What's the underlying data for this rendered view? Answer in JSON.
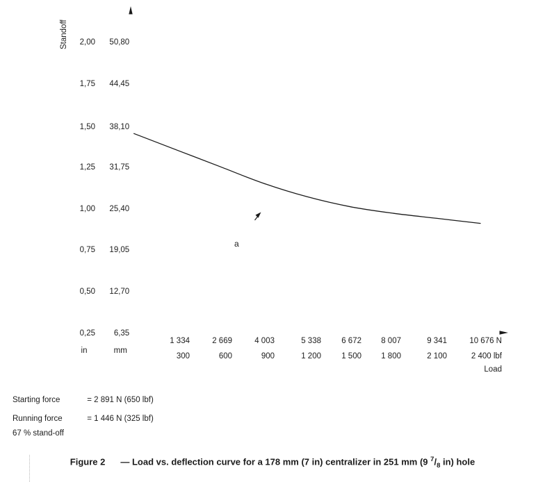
{
  "figure": {
    "y_axis": {
      "title": "Standoff",
      "unit_in": "in",
      "unit_mm": "mm",
      "ticks": [
        {
          "in": "2,00",
          "mm": "50,80"
        },
        {
          "in": "1,75",
          "mm": "44,45"
        },
        {
          "in": "1,50",
          "mm": "38,10"
        },
        {
          "in": "1,25",
          "mm": "31,75"
        },
        {
          "in": "1,00",
          "mm": "25,40"
        },
        {
          "in": "0,75",
          "mm": "19,05"
        },
        {
          "in": "0,50",
          "mm": "12,70"
        },
        {
          "in": "0,25",
          "mm": "6,35"
        }
      ]
    },
    "x_axis": {
      "title": "Load",
      "ticks": [
        {
          "newtons": "1 334",
          "pounds": "300"
        },
        {
          "newtons": "2 669",
          "pounds": "600"
        },
        {
          "newtons": "4 003",
          "pounds": "900"
        },
        {
          "newtons": "5 338",
          "pounds": "1 200"
        },
        {
          "newtons": "6 672",
          "pounds": "1 500"
        },
        {
          "newtons": "8 007",
          "pounds": "1 800"
        },
        {
          "newtons": "9 341",
          "pounds": "2 100"
        },
        {
          "newtons": "10 676 N",
          "pounds": "2 400 lbf"
        }
      ]
    },
    "annotation_a": "a",
    "notes": [
      {
        "label": "Starting force",
        "value": "= 2 891 N (650 lbf)"
      },
      {
        "label": "Running force",
        "value": "= 1 446 N (325 lbf)"
      },
      {
        "label": "67 % stand-off",
        "value": ""
      }
    ],
    "caption": {
      "label": "Figure 2",
      "body_before": "— Load vs. deflection curve for a 178 mm (7 in) centralizer in 251 mm (9 ",
      "frac_numerator": "7",
      "frac_slash": "/",
      "frac_denominator": "8",
      "body_after": " in) hole"
    },
    "line_color": "#1a1a1a"
  },
  "chart_data": {
    "type": "line",
    "title": "Figure 2 — Load vs. deflection curve for a 178 mm (7 in) centralizer in 251 mm (9 7/8 in) hole",
    "xlabel": "Load",
    "ylabel": "Standoff",
    "x_ticks_N": [
      1334,
      2669,
      4003,
      5338,
      6672,
      8007,
      9341,
      10676
    ],
    "x_ticks_lbf": [
      300,
      600,
      900,
      1200,
      1500,
      1800,
      2100,
      2400
    ],
    "y_ticks_in": [
      0.25,
      0.5,
      0.75,
      1.0,
      1.25,
      1.5,
      1.75,
      2.0
    ],
    "y_ticks_mm": [
      6.35,
      12.7,
      19.05,
      25.4,
      31.75,
      38.1,
      44.45,
      50.8
    ],
    "xlim_N": [
      0,
      10676
    ],
    "ylim_in": [
      0.25,
      2.0
    ],
    "grid": false,
    "legend": "none",
    "series": [
      {
        "name": "load-deflection-curve",
        "x_N": [
          0,
          1334,
          2669,
          4003,
          5338,
          6672,
          8007,
          9341,
          10676
        ],
        "y_in": [
          1.46,
          1.36,
          1.26,
          1.16,
          1.08,
          1.02,
          0.98,
          0.95,
          0.92
        ]
      }
    ],
    "annotations": [
      "a"
    ],
    "notes": [
      "Starting force = 2 891 N (650 lbf)",
      "Running force = 1 446 N (325 lbf)",
      "67 % stand-off"
    ]
  }
}
